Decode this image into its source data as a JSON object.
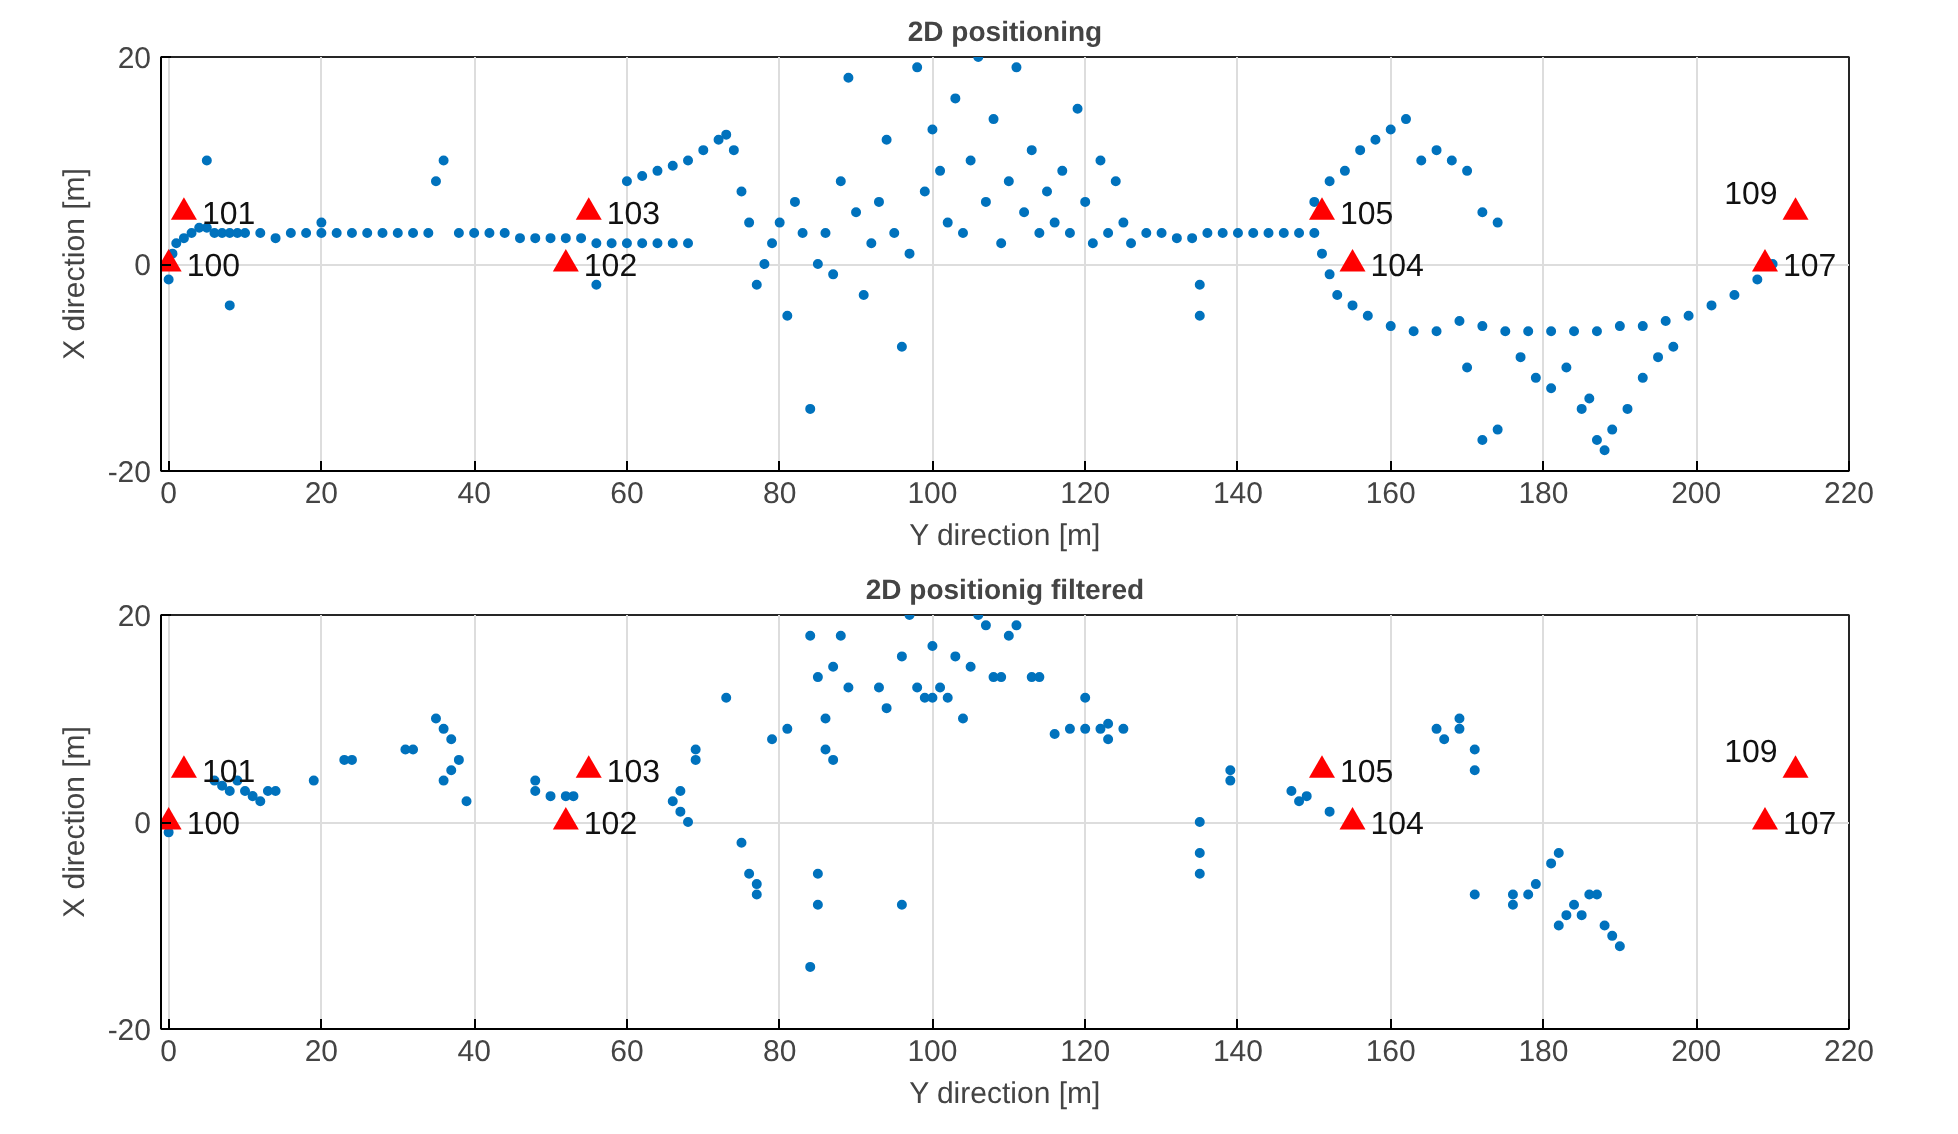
{
  "chart_data": [
    {
      "type": "scatter",
      "title": "2D positioning",
      "xlabel": "Y direction [m]",
      "ylabel": "X direction [m]",
      "xlim": [
        -1,
        220
      ],
      "ylim": [
        -20,
        20
      ],
      "xticks": [
        0,
        20,
        40,
        60,
        80,
        100,
        120,
        140,
        160,
        180,
        200,
        220
      ],
      "yticks": [
        -20,
        0,
        20
      ],
      "grid": true,
      "series": [
        {
          "color": "#0072bd",
          "marker": "circle",
          "x": [
            0,
            0.5,
            1,
            2,
            3,
            4,
            5,
            5,
            6,
            7,
            8,
            8,
            9,
            10,
            12,
            14,
            16,
            18,
            20,
            20,
            22,
            24,
            26,
            28,
            30,
            32,
            34,
            35,
            36,
            38,
            40,
            42,
            44,
            46,
            48,
            50,
            52,
            54,
            56,
            56,
            58,
            60,
            62,
            64,
            66,
            68,
            60,
            62,
            64,
            66,
            68,
            70,
            72,
            73,
            74,
            75,
            76,
            77,
            78,
            79,
            80,
            81,
            82,
            83,
            84,
            85,
            86,
            87,
            88,
            89,
            90,
            91,
            92,
            93,
            94,
            95,
            96,
            97,
            98,
            99,
            100,
            101,
            102,
            103,
            104,
            105,
            106,
            107,
            108,
            109,
            110,
            111,
            112,
            113,
            114,
            115,
            116,
            117,
            118,
            119,
            120,
            121,
            122,
            123,
            124,
            125,
            126,
            128,
            130,
            132,
            134,
            135,
            135,
            136,
            138,
            140,
            142,
            144,
            146,
            148,
            150,
            150,
            152,
            154,
            156,
            158,
            160,
            162,
            164,
            166,
            168,
            170,
            172,
            174,
            151,
            152,
            153,
            155,
            157,
            160,
            163,
            166,
            169,
            172,
            175,
            178,
            181,
            184,
            187,
            190,
            193,
            196,
            199,
            202,
            205,
            208,
            210,
            170,
            172,
            174,
            177,
            179,
            181,
            183,
            185,
            186,
            187,
            188,
            189,
            191,
            193,
            195,
            197
          ],
          "values": [
            -1.5,
            1,
            2,
            2.5,
            3,
            3.5,
            3.5,
            10,
            3,
            3,
            3,
            -4,
            3,
            3,
            3,
            2.5,
            3,
            3,
            3,
            4,
            3,
            3,
            3,
            3,
            3,
            3,
            3,
            8,
            10,
            3,
            3,
            3,
            3,
            2.5,
            2.5,
            2.5,
            2.5,
            2.5,
            2,
            -2,
            2,
            2,
            2,
            2,
            2,
            2,
            8,
            8.5,
            9,
            9.5,
            10,
            11,
            12,
            12.5,
            11,
            7,
            4,
            -2,
            0,
            2,
            4,
            -5,
            6,
            3,
            -14,
            0,
            3,
            -1,
            8,
            18,
            5,
            -3,
            2,
            6,
            12,
            3,
            -8,
            1,
            19,
            7,
            13,
            9,
            4,
            16,
            3,
            10,
            20,
            6,
            14,
            2,
            8,
            19,
            5,
            11,
            3,
            7,
            4,
            9,
            3,
            15,
            6,
            2,
            10,
            3,
            8,
            4,
            2,
            3,
            3,
            2.5,
            2.5,
            -2,
            -5,
            3,
            3,
            3,
            3,
            3,
            3,
            3,
            3,
            6,
            8,
            9,
            11,
            12,
            13,
            14,
            10,
            11,
            10,
            9,
            5,
            4,
            1,
            -1,
            -3,
            -4,
            -5,
            -6,
            -6.5,
            -6.5,
            -5.5,
            -6,
            -6.5,
            -6.5,
            -6.5,
            -6.5,
            -6.5,
            -6,
            -6,
            -5.5,
            -5,
            -4,
            -3,
            -1.5,
            0,
            -10,
            -17,
            -16,
            -9,
            -11,
            -12,
            -10,
            -14,
            -13,
            -17,
            -18,
            -16,
            -14,
            -11,
            -9,
            -8
          ]
        },
        {
          "color": "#ff0000",
          "marker": "triangle",
          "x": [
            0,
            2,
            52,
            55,
            151,
            155,
            209,
            213
          ],
          "values": [
            0,
            5,
            0,
            5,
            5,
            0,
            0,
            5
          ]
        }
      ],
      "annotations": [
        {
          "text": "100",
          "x": 0,
          "y": 0
        },
        {
          "text": "101",
          "x": 2,
          "y": 5
        },
        {
          "text": "102",
          "x": 52,
          "y": 0
        },
        {
          "text": "103",
          "x": 55,
          "y": 5
        },
        {
          "text": "105",
          "x": 151,
          "y": 5
        },
        {
          "text": "104",
          "x": 155,
          "y": 0
        },
        {
          "text": "107",
          "x": 209,
          "y": 0
        },
        {
          "text": "109",
          "x": 213,
          "y": 5
        }
      ]
    },
    {
      "type": "scatter",
      "title": "2D positionig filtered",
      "xlabel": "Y direction [m]",
      "ylabel": "X direction [m]",
      "xlim": [
        -1,
        220
      ],
      "ylim": [
        -20,
        20
      ],
      "xticks": [
        0,
        20,
        40,
        60,
        80,
        100,
        120,
        140,
        160,
        180,
        200,
        220
      ],
      "yticks": [
        -20,
        0,
        20
      ],
      "grid": true,
      "series": [
        {
          "color": "#0072bd",
          "marker": "circle",
          "x": [
            0,
            6,
            7,
            8,
            9,
            10,
            11,
            12,
            13,
            14,
            19,
            23,
            24,
            31,
            32,
            35,
            36,
            37,
            37,
            38,
            36,
            39,
            48,
            48,
            50,
            52,
            53,
            66,
            67,
            67,
            68,
            69,
            69,
            73,
            75,
            76,
            77,
            77,
            79,
            81,
            84,
            84,
            85,
            85,
            85,
            86,
            86,
            87,
            87,
            88,
            89,
            93,
            94,
            96,
            96,
            97,
            98,
            99,
            100,
            100,
            101,
            102,
            103,
            104,
            105,
            106,
            107,
            108,
            109,
            110,
            111,
            113,
            114,
            116,
            118,
            120,
            120,
            122,
            123,
            123,
            125,
            135,
            135,
            135,
            139,
            139,
            147,
            148,
            149,
            152,
            166,
            167,
            169,
            169,
            171,
            171,
            171,
            176,
            176,
            178,
            179,
            181,
            182,
            182,
            183,
            184,
            185,
            186,
            187,
            188,
            189,
            190
          ],
          "values": [
            -1,
            4,
            3.5,
            3,
            4,
            3,
            2.5,
            2,
            3,
            3,
            4,
            6,
            6,
            7,
            7,
            10,
            9,
            8,
            5,
            6,
            4,
            2,
            4,
            3,
            2.5,
            2.5,
            2.5,
            2,
            1,
            3,
            0,
            6,
            7,
            12,
            -2,
            -5,
            -6,
            -7,
            8,
            9,
            -14,
            18,
            -5,
            -8,
            14,
            10,
            7,
            6,
            15,
            18,
            13,
            13,
            11,
            -8,
            16,
            20,
            13,
            12,
            12,
            17,
            13,
            12,
            16,
            10,
            15,
            20,
            19,
            14,
            14,
            18,
            19,
            14,
            14,
            8.5,
            9,
            9,
            12,
            9,
            9.5,
            8,
            9,
            -3,
            0,
            -5,
            4,
            5,
            3,
            2,
            2.5,
            1,
            9,
            8,
            10,
            9,
            7,
            5,
            -7,
            -8,
            -7,
            -7,
            -6,
            -4,
            -3,
            -10,
            -9,
            -8,
            -9,
            -7,
            -7,
            -10,
            -11,
            -12
          ]
        },
        {
          "color": "#ff0000",
          "marker": "triangle",
          "x": [
            0,
            2,
            52,
            55,
            151,
            155,
            209,
            213
          ],
          "values": [
            0,
            5,
            0,
            5,
            5,
            0,
            0,
            5
          ]
        }
      ],
      "annotations": [
        {
          "text": "100",
          "x": 0,
          "y": 0
        },
        {
          "text": "101",
          "x": 2,
          "y": 5
        },
        {
          "text": "102",
          "x": 52,
          "y": 0
        },
        {
          "text": "103",
          "x": 55,
          "y": 5
        },
        {
          "text": "105",
          "x": 151,
          "y": 5
        },
        {
          "text": "104",
          "x": 155,
          "y": 0
        },
        {
          "text": "107",
          "x": 209,
          "y": 0
        },
        {
          "text": "109",
          "x": 213,
          "y": 5
        }
      ]
    }
  ]
}
